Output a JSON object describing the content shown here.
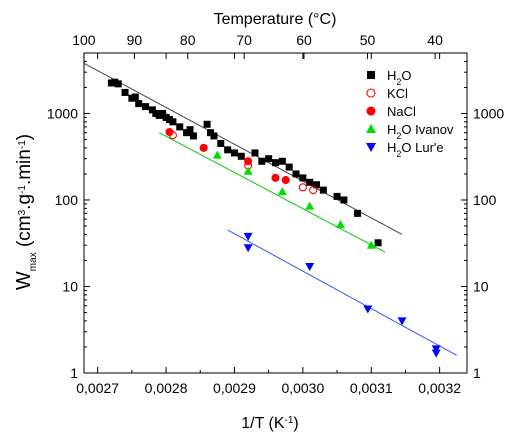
{
  "chart_data": {
    "type": "scatter",
    "xlabel": "1/T (K⁻¹)",
    "ylabel": "W_max (cm³·g⁻¹·min⁻¹)",
    "top_xlabel": "Temperature (°C)",
    "xlim": [
      0.00268,
      0.00324
    ],
    "ylim": [
      1,
      5000
    ],
    "yscale": "log",
    "x_ticks": [
      0.0027,
      0.0028,
      0.0029,
      0.003,
      0.0031,
      0.0032
    ],
    "x_tick_labels": [
      "0,0027",
      "0,0028",
      "0,0029",
      "0,0030",
      "0,0031",
      "0,0032"
    ],
    "y_ticks": [
      1,
      10,
      100,
      1000
    ],
    "y_tick_labels": [
      "1",
      "10",
      "100",
      "1000"
    ],
    "top_ticks_celsius": [
      100,
      90,
      80,
      70,
      60,
      50,
      40
    ],
    "top_tick_labels": [
      "100",
      "90",
      "80",
      "70",
      "60",
      "50",
      "40"
    ],
    "legend_position": "top-right",
    "series": [
      {
        "name": "H2O",
        "marker": "square",
        "color": "#000000",
        "filled": true,
        "points": [
          [
            0.00272,
            2250
          ],
          [
            0.002725,
            2300
          ],
          [
            0.00273,
            2200
          ],
          [
            0.00274,
            1750
          ],
          [
            0.00275,
            1500
          ],
          [
            0.002755,
            1550
          ],
          [
            0.00276,
            1300
          ],
          [
            0.00277,
            1200
          ],
          [
            0.00278,
            1100
          ],
          [
            0.002785,
            1000
          ],
          [
            0.00279,
            950
          ],
          [
            0.002795,
            1000
          ],
          [
            0.0028,
            900
          ],
          [
            0.002805,
            850
          ],
          [
            0.00281,
            800
          ],
          [
            0.00282,
            700
          ],
          [
            0.00283,
            600
          ],
          [
            0.002835,
            650
          ],
          [
            0.00284,
            550
          ],
          [
            0.00286,
            750
          ],
          [
            0.002865,
            600
          ],
          [
            0.00287,
            550
          ],
          [
            0.00288,
            450
          ],
          [
            0.00289,
            380
          ],
          [
            0.0029,
            350
          ],
          [
            0.00291,
            320
          ],
          [
            0.00293,
            350
          ],
          [
            0.00294,
            280
          ],
          [
            0.00295,
            300
          ],
          [
            0.00296,
            270
          ],
          [
            0.00297,
            280
          ],
          [
            0.00298,
            240
          ],
          [
            0.00299,
            200
          ],
          [
            0.003,
            180
          ],
          [
            0.00301,
            160
          ],
          [
            0.00302,
            150
          ],
          [
            0.00303,
            130
          ],
          [
            0.00305,
            110
          ],
          [
            0.00306,
            100
          ],
          [
            0.00308,
            70
          ],
          [
            0.00311,
            32
          ]
        ],
        "fit": [
          [
            0.00268,
            3800
          ],
          [
            0.003145,
            40
          ]
        ]
      },
      {
        "name": "KCl",
        "marker": "circle",
        "color": "#ff0000",
        "filled": false,
        "points": [
          [
            0.00281,
            560
          ],
          [
            0.00292,
            250
          ],
          [
            0.003,
            140
          ],
          [
            0.003015,
            130
          ]
        ],
        "fit": null
      },
      {
        "name": "NaCl",
        "marker": "circle",
        "color": "#ff0000",
        "filled": true,
        "points": [
          [
            0.002805,
            610
          ],
          [
            0.002855,
            400
          ],
          [
            0.00292,
            280
          ],
          [
            0.00296,
            180
          ],
          [
            0.002975,
            170
          ]
        ],
        "fit": null
      },
      {
        "name": "H2O Ivanov",
        "marker": "triangle-up",
        "color": "#00dd00",
        "filled": true,
        "points": [
          [
            0.002875,
            330
          ],
          [
            0.00292,
            215
          ],
          [
            0.00297,
            125
          ],
          [
            0.00301,
            85
          ],
          [
            0.003055,
            52
          ],
          [
            0.0031,
            30
          ]
        ],
        "fit": [
          [
            0.00279,
            600
          ],
          [
            0.00312,
            25
          ]
        ]
      },
      {
        "name": "H2O Lur'e",
        "marker": "triangle-down",
        "color": "#0000ff",
        "filled": true,
        "points": [
          [
            0.00292,
            38
          ],
          [
            0.00292,
            28
          ],
          [
            0.00301,
            17
          ],
          [
            0.003095,
            5.5
          ],
          [
            0.003145,
            4
          ],
          [
            0.003195,
            1.9
          ],
          [
            0.003195,
            1.7
          ]
        ],
        "fit": [
          [
            0.00289,
            45
          ],
          [
            0.003225,
            1.6
          ]
        ]
      }
    ]
  },
  "legend": {
    "items": [
      {
        "base": "H",
        "sub": "2",
        "rest": "O",
        "plain": ""
      },
      {
        "base": "",
        "sub": "",
        "rest": "",
        "plain": "KCl"
      },
      {
        "base": "",
        "sub": "",
        "rest": "",
        "plain": "NaCl"
      },
      {
        "base": "H",
        "sub": "2",
        "rest": "O Ivanov",
        "plain": ""
      },
      {
        "base": "H",
        "sub": "2",
        "rest": "O Lur'e",
        "plain": ""
      }
    ]
  },
  "labels": {
    "top_axis_title": "Temperature (°C)",
    "bottom_axis_title_main": "1/T (K",
    "bottom_axis_title_sup": "-1",
    "bottom_axis_title_end": ")",
    "y_title_w": "W",
    "y_title_sub": "max",
    "y_title_a": " (cm",
    "y_title_sup1": "3",
    "y_title_b": ".g",
    "y_title_sup2": "-1",
    "y_title_c": ".min",
    "y_title_sup3": "-1",
    "y_title_d": ")"
  },
  "colors": {
    "fit_H2O": "#444444",
    "fit_Ivanov": "#00cc00",
    "fit_Lure": "#3355ff"
  }
}
